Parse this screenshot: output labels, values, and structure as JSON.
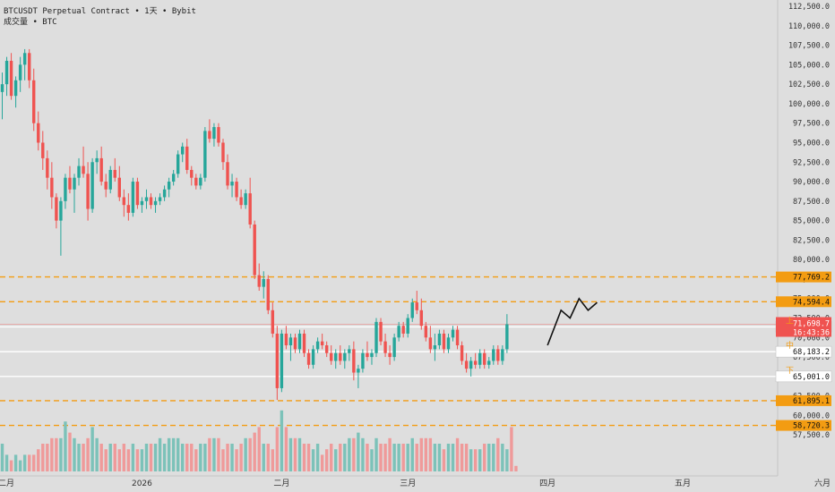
{
  "header": {
    "symbol": "BTCUSDT Perpetual Contract",
    "interval": "1天",
    "exchange": "Bybit",
    "separator": "•",
    "volume_label": "成交量",
    "volume_unit": "BTC"
  },
  "colors": {
    "background": "#dedede",
    "up": "#26a69a",
    "down": "#ef5350",
    "up_volume": "#7cc2b9",
    "down_volume": "#ef9a9a",
    "dashed_level": "#f39c12",
    "white_level": "#ffffff",
    "current_price": "#ef5350",
    "arrow": "#111111"
  },
  "chart_data": {
    "type": "candlestick",
    "y_axis": {
      "min": 55000,
      "max": 112500,
      "ticks": [
        "112,500.0",
        "110,000.0",
        "107,500.0",
        "105,000.0",
        "102,500.0",
        "100,000.0",
        "97,500.0",
        "95,000.0",
        "92,500.0",
        "90,000.0",
        "87,500.0",
        "85,000.0",
        "82,500.0",
        "80,000.0",
        "77,500.0",
        "75,000.0",
        "72,500.0",
        "70,000.0",
        "67,500.0",
        "65,000.0",
        "62,500.0",
        "60,000.0",
        "57,500.0"
      ]
    },
    "x_axis": {
      "labels": [
        {
          "label": "十二月",
          "day": 0
        },
        {
          "label": "2026",
          "day": 31
        },
        {
          "label": "二月",
          "day": 62
        },
        {
          "label": "三月",
          "day": 90
        },
        {
          "label": "四月",
          "day": 121
        },
        {
          "label": "五月",
          "day": 151
        },
        {
          "label": "六月",
          "day": 182
        }
      ]
    },
    "candles": [
      [
        101500,
        104000,
        98000,
        102500
      ],
      [
        102500,
        106000,
        101000,
        105500
      ],
      [
        105500,
        106500,
        100500,
        101000
      ],
      [
        101000,
        103500,
        99500,
        103000
      ],
      [
        103000,
        106000,
        101500,
        105000
      ],
      [
        105000,
        107000,
        103000,
        106500
      ],
      [
        106500,
        107000,
        102000,
        103000
      ],
      [
        103000,
        104500,
        96500,
        97500
      ],
      [
        97500,
        99000,
        94000,
        95000
      ],
      [
        95000,
        96500,
        91500,
        93000
      ],
      [
        93000,
        94000,
        89000,
        90500
      ],
      [
        90500,
        92500,
        86500,
        88000
      ],
      [
        88000,
        88500,
        84000,
        85000
      ],
      [
        85000,
        88000,
        80500,
        87500
      ],
      [
        87500,
        91000,
        86500,
        90500
      ],
      [
        90500,
        92000,
        88500,
        89000
      ],
      [
        89000,
        91000,
        86000,
        90500
      ],
      [
        90500,
        93000,
        89500,
        92000
      ],
      [
        92000,
        94500,
        90500,
        91000
      ],
      [
        91000,
        92500,
        85000,
        86500
      ],
      [
        86500,
        93000,
        86000,
        92500
      ],
      [
        92500,
        94000,
        91000,
        93000
      ],
      [
        93000,
        94500,
        89500,
        90000
      ],
      [
        90000,
        91000,
        88000,
        89000
      ],
      [
        89000,
        92000,
        88500,
        91500
      ],
      [
        91500,
        93000,
        90000,
        90500
      ],
      [
        90500,
        92000,
        87500,
        88000
      ],
      [
        88000,
        89000,
        85500,
        87000
      ],
      [
        87000,
        88500,
        85000,
        86000
      ],
      [
        86000,
        90500,
        85500,
        90000
      ],
      [
        90000,
        90500,
        86500,
        87000
      ],
      [
        87000,
        88000,
        86000,
        87500
      ],
      [
        87500,
        89000,
        86500,
        88000
      ],
      [
        88000,
        88500,
        86500,
        87000
      ],
      [
        87000,
        88000,
        86000,
        87500
      ],
      [
        87500,
        88500,
        87000,
        88000
      ],
      [
        88000,
        89500,
        87500,
        89000
      ],
      [
        89000,
        90500,
        88000,
        90000
      ],
      [
        90000,
        91500,
        89500,
        91000
      ],
      [
        91000,
        94000,
        90500,
        93500
      ],
      [
        93500,
        95000,
        92500,
        94500
      ],
      [
        94500,
        95500,
        91000,
        91500
      ],
      [
        91500,
        92000,
        89500,
        90500
      ],
      [
        90500,
        91000,
        89000,
        89500
      ],
      [
        89500,
        91000,
        89000,
        90500
      ],
      [
        90500,
        97000,
        90000,
        96500
      ],
      [
        96500,
        98000,
        95000,
        95500
      ],
      [
        95500,
        97500,
        94500,
        97000
      ],
      [
        97000,
        97500,
        94500,
        95000
      ],
      [
        95000,
        95500,
        91500,
        92500
      ],
      [
        92500,
        93500,
        89000,
        89500
      ],
      [
        89500,
        91000,
        88000,
        90000
      ],
      [
        90000,
        90500,
        87500,
        88000
      ],
      [
        88000,
        89000,
        86500,
        87000
      ],
      [
        87000,
        89000,
        86500,
        88500
      ],
      [
        88500,
        90500,
        84000,
        84500
      ],
      [
        84500,
        85000,
        77500,
        78000
      ],
      [
        78000,
        79500,
        76000,
        76500
      ],
      [
        76500,
        78500,
        75000,
        77500
      ],
      [
        77500,
        78000,
        73000,
        73500
      ],
      [
        73500,
        74500,
        70000,
        70500
      ],
      [
        70500,
        71500,
        62000,
        63500
      ],
      [
        63500,
        71000,
        63000,
        70500
      ],
      [
        70500,
        71500,
        68500,
        69000
      ],
      [
        69000,
        70500,
        67000,
        70000
      ],
      [
        70000,
        70500,
        68000,
        68500
      ],
      [
        68500,
        71000,
        68000,
        70500
      ],
      [
        70500,
        71000,
        67500,
        68000
      ],
      [
        68000,
        68500,
        66000,
        66500
      ],
      [
        66500,
        69000,
        66000,
        68500
      ],
      [
        68500,
        70000,
        68000,
        69500
      ],
      [
        69500,
        70500,
        68500,
        69000
      ],
      [
        69000,
        69500,
        67500,
        68000
      ],
      [
        68000,
        69000,
        66500,
        67000
      ],
      [
        67000,
        68500,
        66000,
        68000
      ],
      [
        68000,
        69000,
        66500,
        67000
      ],
      [
        67000,
        68500,
        66000,
        68000
      ],
      [
        68000,
        69000,
        67000,
        68500
      ],
      [
        68500,
        69500,
        64500,
        65500
      ],
      [
        65500,
        66500,
        63500,
        66000
      ],
      [
        66000,
        68500,
        65500,
        68000
      ],
      [
        68000,
        69500,
        67000,
        67500
      ],
      [
        67500,
        68500,
        66500,
        68000
      ],
      [
        68000,
        72500,
        67500,
        72000
      ],
      [
        72000,
        72500,
        69000,
        69500
      ],
      [
        69500,
        70500,
        67500,
        68000
      ],
      [
        68000,
        69000,
        66500,
        67500
      ],
      [
        67500,
        70500,
        67000,
        70000
      ],
      [
        70000,
        72000,
        69500,
        71500
      ],
      [
        71500,
        72000,
        70000,
        70500
      ],
      [
        70500,
        73000,
        70000,
        72500
      ],
      [
        72500,
        75000,
        72000,
        74500
      ],
      [
        74500,
        76000,
        73000,
        73500
      ],
      [
        73500,
        75000,
        71000,
        71500
      ],
      [
        71500,
        72000,
        69500,
        70000
      ],
      [
        70000,
        71500,
        68000,
        68500
      ],
      [
        68500,
        70500,
        67000,
        69000
      ],
      [
        69000,
        71000,
        68500,
        70500
      ],
      [
        70500,
        71000,
        68000,
        68500
      ],
      [
        68500,
        70500,
        68000,
        70000
      ],
      [
        70000,
        71500,
        69500,
        71000
      ],
      [
        71000,
        71500,
        68500,
        69000
      ],
      [
        69000,
        69500,
        66500,
        67000
      ],
      [
        67000,
        68000,
        65500,
        66000
      ],
      [
        66000,
        67500,
        65000,
        67000
      ],
      [
        67000,
        68000,
        66000,
        66500
      ],
      [
        66500,
        68500,
        66000,
        68000
      ],
      [
        68000,
        68500,
        66000,
        66500
      ],
      [
        66500,
        67500,
        66000,
        67000
      ],
      [
        67000,
        69000,
        66500,
        68500
      ],
      [
        68500,
        69000,
        66500,
        67000
      ],
      [
        67000,
        69000,
        66500,
        68500
      ],
      [
        68500,
        73000,
        68000,
        71700
      ]
    ],
    "volumes": [
      5,
      3,
      2,
      3,
      2,
      3,
      3,
      3,
      4,
      5,
      5,
      6,
      6,
      6,
      9,
      7,
      6,
      5,
      5,
      6,
      8,
      6,
      5,
      4,
      5,
      5,
      4,
      5,
      4,
      5,
      4,
      4,
      5,
      5,
      5,
      6,
      5,
      6,
      6,
      6,
      5,
      5,
      5,
      4,
      5,
      5,
      6,
      6,
      6,
      4,
      5,
      5,
      4,
      5,
      6,
      6,
      7,
      8,
      5,
      5,
      4,
      8,
      11,
      8,
      6,
      6,
      6,
      5,
      5,
      4,
      5,
      3,
      4,
      5,
      4,
      5,
      5,
      6,
      6,
      7,
      6,
      5,
      4,
      6,
      5,
      5,
      6,
      5,
      5,
      5,
      5,
      6,
      5,
      6,
      6,
      6,
      5,
      5,
      4,
      5,
      5,
      6,
      5,
      5,
      4,
      4,
      4,
      5,
      5,
      5,
      6,
      5,
      4,
      8,
      1
    ],
    "price_levels": [
      {
        "price": "77,769.2",
        "value": 77769.2,
        "style": "dashed-orange"
      },
      {
        "price": "74,594.4",
        "value": 74594.4,
        "style": "dashed-orange"
      },
      {
        "price": "71,365.8",
        "value": 71365.8,
        "style": "white"
      },
      {
        "price": "68,183.2",
        "value": 68183.2,
        "style": "white"
      },
      {
        "price": "65,001.0",
        "value": 65001.0,
        "style": "white"
      },
      {
        "price": "61,895.1",
        "value": 61895.1,
        "style": "dashed-orange"
      },
      {
        "price": "58,720.3",
        "value": 58720.3,
        "style": "dashed-orange"
      }
    ],
    "current_price": {
      "value": 71698.7,
      "price": "71,698.7",
      "countdown": "16:43:36"
    },
    "level_tags": [
      {
        "text": "上",
        "value": 71365.8
      },
      {
        "text": "中",
        "value": 68183.2
      },
      {
        "text": "下",
        "value": 65001.0
      }
    ],
    "projection_path": [
      [
        121,
        69000
      ],
      [
        124,
        73500
      ],
      [
        126,
        72500
      ],
      [
        128,
        75000
      ],
      [
        130,
        73500
      ],
      [
        132,
        74500
      ]
    ]
  }
}
